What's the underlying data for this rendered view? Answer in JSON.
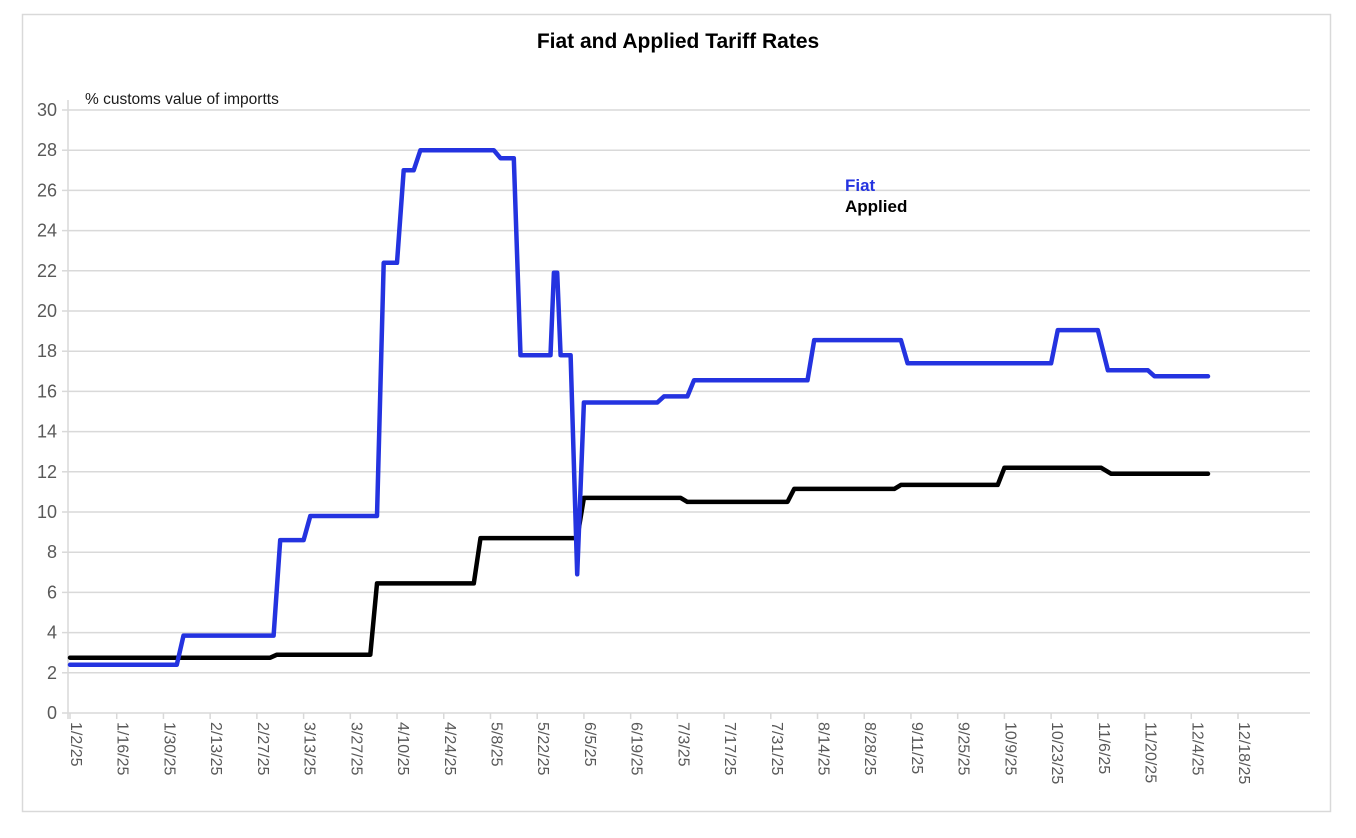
{
  "page": {
    "background_color": "#ffffff",
    "frame_border_color": "#d9d9d9"
  },
  "chart_data": {
    "type": "line",
    "title": "Fiat and Applied Tariff Rates",
    "unit_annotation": "% customs value of importts",
    "xlabel": "",
    "ylabel": "",
    "grid": "horizontal",
    "gridline_color": "#d9d9d9",
    "axis_label_color": "#595959",
    "y_axis": {
      "min": 0,
      "max": 30,
      "tick_step": 2,
      "tick_labels": [
        "0",
        "2",
        "4",
        "6",
        "8",
        "10",
        "12",
        "14",
        "16",
        "18",
        "20",
        "22",
        "24",
        "26",
        "28",
        "30"
      ]
    },
    "x_axis": {
      "start_date": "1/2/25",
      "tick_interval_days": 14,
      "tick_labels": [
        "1/2/25",
        "1/16/25",
        "1/30/25",
        "2/13/25",
        "2/27/25",
        "3/13/25",
        "3/27/25",
        "4/10/25",
        "4/24/25",
        "5/8/25",
        "5/22/25",
        "6/5/25",
        "6/19/25",
        "7/3/25",
        "7/17/25",
        "7/31/25",
        "8/14/25",
        "8/28/25",
        "9/11/25",
        "9/25/25",
        "10/9/25",
        "10/23/25",
        "11/6/25",
        "11/20/25",
        "12/4/25",
        "12/18/25"
      ]
    },
    "legend": {
      "position": "inside-top-center-right",
      "entries": [
        {
          "label": "Fiat",
          "color": "#2433e0"
        },
        {
          "label": "Applied",
          "color": "#000000"
        }
      ]
    },
    "series": [
      {
        "name": "Applied",
        "color": "#000000",
        "points": [
          [
            "1/2",
            2.75
          ],
          [
            "3/3",
            2.75
          ],
          [
            "3/5",
            2.9
          ],
          [
            "4/2",
            2.9
          ],
          [
            "4/4",
            6.45
          ],
          [
            "5/3",
            6.45
          ],
          [
            "5/5",
            8.7
          ],
          [
            "6/3",
            8.7
          ],
          [
            "6/5",
            10.7
          ],
          [
            "7/4",
            10.7
          ],
          [
            "7/6",
            10.5
          ],
          [
            "8/5",
            10.5
          ],
          [
            "8/7",
            11.15
          ],
          [
            "9/6",
            11.15
          ],
          [
            "9/8",
            11.35
          ],
          [
            "10/7",
            11.35
          ],
          [
            "10/9",
            12.2
          ],
          [
            "11/7",
            12.2
          ],
          [
            "11/10",
            11.9
          ],
          [
            "12/9",
            11.9
          ]
        ]
      },
      {
        "name": "Fiat",
        "color": "#2433e0",
        "points": [
          [
            "1/2",
            2.4
          ],
          [
            "2/3",
            2.4
          ],
          [
            "2/5",
            3.85
          ],
          [
            "3/4",
            3.85
          ],
          [
            "3/6",
            8.6
          ],
          [
            "3/13",
            8.6
          ],
          [
            "3/15",
            9.8
          ],
          [
            "4/4",
            9.8
          ],
          [
            "4/6",
            22.4
          ],
          [
            "4/10",
            22.4
          ],
          [
            "4/12",
            27.0
          ],
          [
            "4/15",
            27.0
          ],
          [
            "4/17",
            28.0
          ],
          [
            "5/9",
            28.0
          ],
          [
            "5/11",
            27.6
          ],
          [
            "5/15",
            27.6
          ],
          [
            "5/17",
            17.8
          ],
          [
            "5/26",
            17.8
          ],
          [
            "5/27",
            21.9
          ],
          [
            "5/28",
            21.9
          ],
          [
            "5/29",
            17.8
          ],
          [
            "6/1",
            17.8
          ],
          [
            "6/3",
            6.9
          ],
          [
            "6/5",
            15.45
          ],
          [
            "6/27",
            15.45
          ],
          [
            "6/29",
            15.75
          ],
          [
            "7/6",
            15.75
          ],
          [
            "7/8",
            16.55
          ],
          [
            "8/11",
            16.55
          ],
          [
            "8/13",
            18.55
          ],
          [
            "9/8",
            18.55
          ],
          [
            "9/10",
            17.4
          ],
          [
            "10/23",
            17.4
          ],
          [
            "10/25",
            19.05
          ],
          [
            "11/6",
            19.05
          ],
          [
            "11/9",
            17.05
          ],
          [
            "11/21",
            17.05
          ],
          [
            "11/23",
            16.75
          ],
          [
            "12/9",
            16.75
          ]
        ]
      }
    ]
  }
}
